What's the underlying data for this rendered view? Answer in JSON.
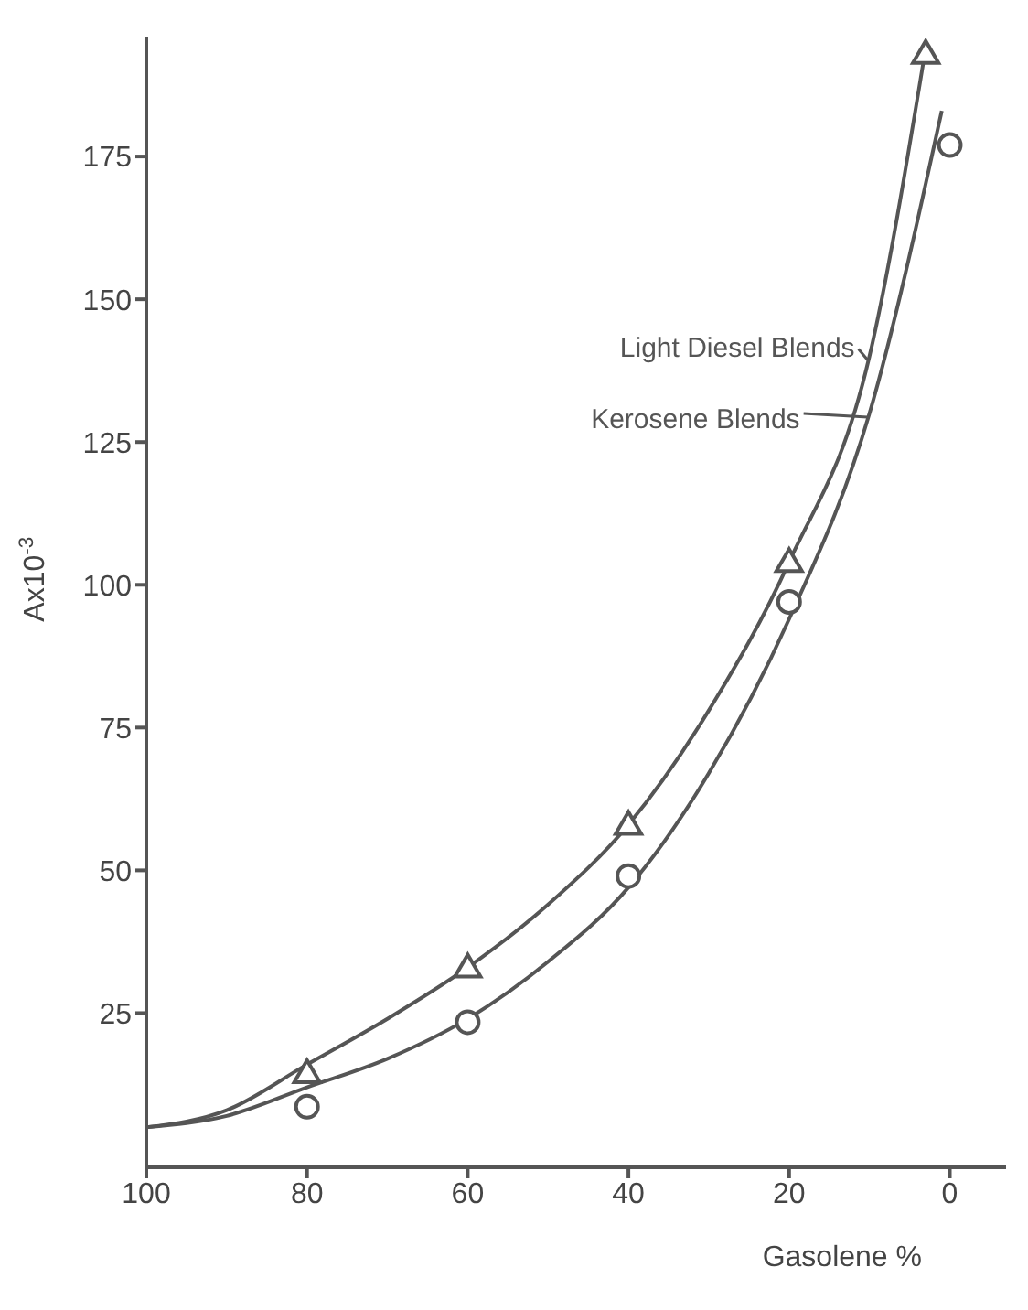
{
  "chart_data": {
    "type": "scatter",
    "xlabel": "Gasolene %",
    "ylabel": "Ax10$^{-3}$",
    "xlim": [
      100,
      -7
    ],
    "ylim": [
      -2,
      196
    ],
    "xticks": [
      100,
      80,
      60,
      40,
      20,
      0
    ],
    "yticks": [
      25,
      50,
      75,
      100,
      125,
      150,
      175
    ],
    "grid": false,
    "legend": "right",
    "series": [
      {
        "name": "Light Diesel Blends",
        "type": "line",
        "marker": "none",
        "color": "#555555",
        "x": [
          100,
          90,
          80,
          70,
          60,
          50,
          40,
          30,
          20,
          10,
          3
        ],
        "values": [
          5,
          8,
          16,
          24,
          33,
          44,
          58,
          78,
          104,
          140,
          194
        ]
      },
      {
        "name": "Kerosene Blends",
        "type": "line",
        "marker": "none",
        "color": "#555555",
        "x": [
          100,
          90,
          80,
          70,
          60,
          50,
          40,
          30,
          20,
          10,
          1
        ],
        "values": [
          5,
          7,
          12,
          17,
          24,
          34,
          47,
          67,
          94,
          130,
          183
        ]
      },
      {
        "marker": "triangle",
        "color": "#555555",
        "x": [
          80,
          60,
          40,
          20,
          3
        ],
        "values": [
          14.5,
          33,
          58,
          104,
          193
        ]
      },
      {
        "marker": "circle",
        "color": "#555555",
        "x": [
          80,
          60,
          40,
          20,
          0
        ],
        "values": [
          8.6,
          23.4,
          49,
          97,
          177
        ]
      }
    ]
  }
}
